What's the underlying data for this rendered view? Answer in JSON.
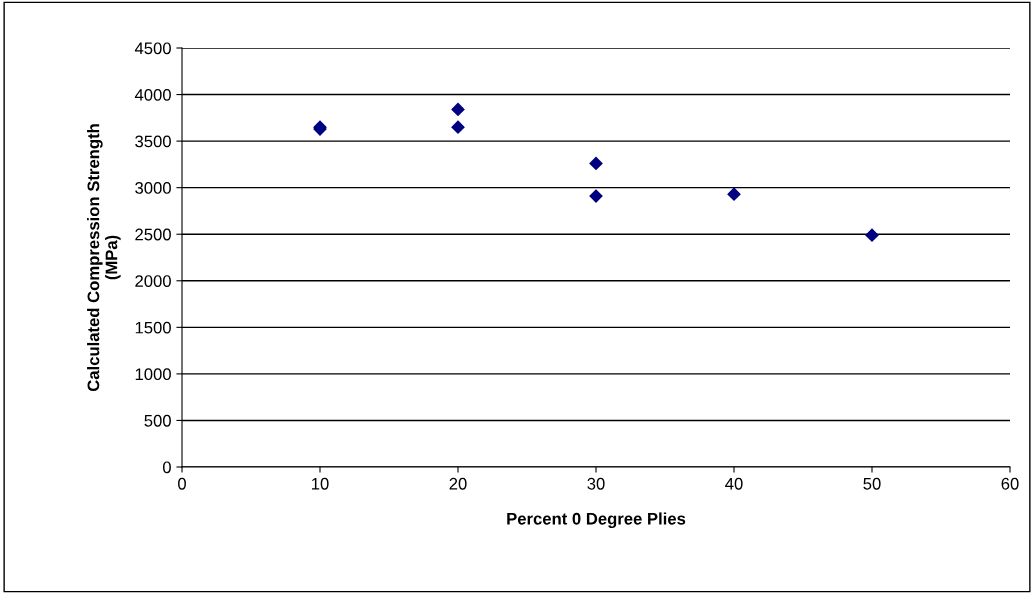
{
  "chart_data": {
    "type": "scatter",
    "xlabel": "Percent 0 Degree Plies",
    "ylabel": "Calculated Compression Strength\n(MPa)",
    "series": [
      {
        "color": "#000080",
        "x": [
          10,
          10,
          20,
          20,
          30,
          30,
          40,
          50
        ],
        "values": [
          3650,
          3630,
          3840,
          3650,
          3260,
          2910,
          2930,
          2490
        ]
      }
    ],
    "xlim": [
      0,
      60
    ],
    "xticks": [
      0,
      10,
      20,
      30,
      40,
      50,
      60
    ],
    "ylim": [
      0,
      4500
    ],
    "yticks": [
      0,
      500,
      1000,
      1500,
      2000,
      2500,
      3000,
      3500,
      4000,
      4500
    ],
    "grid": "y",
    "marker": "diamond",
    "legend": false
  }
}
